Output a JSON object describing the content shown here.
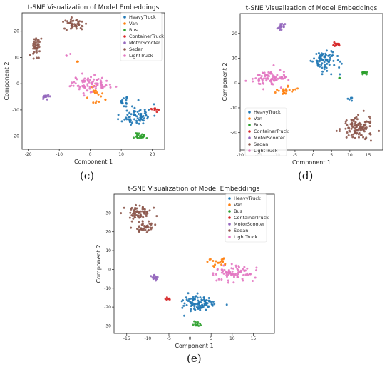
{
  "colors": {
    "HeavyTruck": "#1f77b4",
    "Van": "#ff7f0e",
    "Bus": "#2ca02c",
    "ContainerTruck": "#d62728",
    "MotorScooter": "#9467bd",
    "Sedan": "#8c564b",
    "LightTruck": "#e377c2"
  },
  "captions": {
    "c": "(c)",
    "d": "(d)",
    "e": "(e)"
  },
  "chart_data": [
    {
      "type": "scatter",
      "panel": "c",
      "title": "t-SNE Visualization of Model Embeddings",
      "xlabel": "Component 1",
      "ylabel": "Component 2",
      "xlim": [
        -22,
        24
      ],
      "ylim": [
        -25,
        27
      ],
      "xticks": [
        -20,
        -10,
        0,
        10,
        20
      ],
      "yticks": [
        -20,
        -10,
        0,
        10,
        20
      ],
      "grid": false,
      "legend_position": "top-right",
      "series": [
        {
          "name": "HeavyTruck",
          "clusters": [
            {
              "cx": 15,
              "cy": -12,
              "sx": 4,
              "sy": 3.5,
              "n": 70
            },
            {
              "cx": 11,
              "cy": -7,
              "sx": 2,
              "sy": 1.5,
              "n": 12
            }
          ]
        },
        {
          "name": "Van",
          "clusters": [
            {
              "cx": 2,
              "cy": -4,
              "sx": 2.2,
              "sy": 3.5,
              "n": 18
            },
            {
              "cx": -4,
              "cy": 8.5,
              "sx": 0.4,
              "sy": 0.4,
              "n": 3
            }
          ]
        },
        {
          "name": "Bus",
          "clusters": [
            {
              "cx": 16,
              "cy": -20,
              "sx": 1.5,
              "sy": 1.2,
              "n": 22
            }
          ]
        },
        {
          "name": "ContainerTruck",
          "clusters": [
            {
              "cx": 21,
              "cy": -10,
              "sx": 0.8,
              "sy": 0.8,
              "n": 10
            }
          ]
        },
        {
          "name": "MotorScooter",
          "clusters": [
            {
              "cx": -14.5,
              "cy": -5,
              "sx": 1.2,
              "sy": 0.8,
              "n": 14
            }
          ]
        },
        {
          "name": "Sedan",
          "clusters": [
            {
              "cx": -5,
              "cy": 23,
              "sx": 3.5,
              "sy": 2,
              "n": 45
            },
            {
              "cx": -17.5,
              "cy": 14,
              "sx": 1.2,
              "sy": 3,
              "n": 40
            }
          ]
        },
        {
          "name": "LightTruck",
          "clusters": [
            {
              "cx": 0,
              "cy": 0,
              "sx": 5,
              "sy": 2.5,
              "n": 85
            },
            {
              "cx": -7,
              "cy": 11,
              "sx": 0.8,
              "sy": 0.6,
              "n": 4
            }
          ]
        }
      ]
    },
    {
      "type": "scatter",
      "panel": "d",
      "title": "t-SNE Visualization of Model Embeddings",
      "xlabel": "Component 1",
      "ylabel": "Component 2",
      "xlim": [
        -20,
        19
      ],
      "ylim": [
        -27,
        28
      ],
      "xticks": [
        -20,
        -15,
        -10,
        -5,
        0,
        5,
        10,
        15
      ],
      "yticks": [
        -20,
        -10,
        0,
        10,
        20
      ],
      "grid": false,
      "legend_position": "lower-left",
      "series": [
        {
          "name": "HeavyTruck",
          "clusters": [
            {
              "cx": 3,
              "cy": 9,
              "sx": 3,
              "sy": 3.5,
              "n": 75
            },
            {
              "cx": 10,
              "cy": -6,
              "sx": 0.6,
              "sy": 1.2,
              "n": 5
            }
          ]
        },
        {
          "name": "Van",
          "clusters": [
            {
              "cx": -8,
              "cy": -3,
              "sx": 2.5,
              "sy": 1.2,
              "n": 22
            }
          ]
        },
        {
          "name": "Bus",
          "clusters": [
            {
              "cx": 14,
              "cy": 4,
              "sx": 0.8,
              "sy": 0.6,
              "n": 14
            },
            {
              "cx": 7,
              "cy": 2,
              "sx": 0.3,
              "sy": 0.3,
              "n": 2
            }
          ]
        },
        {
          "name": "ContainerTruck",
          "clusters": [
            {
              "cx": 6,
              "cy": 15.5,
              "sx": 1,
              "sy": 1,
              "n": 14
            }
          ]
        },
        {
          "name": "MotorScooter",
          "clusters": [
            {
              "cx": -9,
              "cy": 23,
              "sx": 0.8,
              "sy": 1.5,
              "n": 16
            }
          ]
        },
        {
          "name": "Sedan",
          "clusters": [
            {
              "cx": 12,
              "cy": -18,
              "sx": 3.5,
              "sy": 3.5,
              "n": 110
            }
          ]
        },
        {
          "name": "LightTruck",
          "clusters": [
            {
              "cx": -12,
              "cy": 2,
              "sx": 4,
              "sy": 2.5,
              "n": 85
            }
          ]
        }
      ]
    },
    {
      "type": "scatter",
      "panel": "e",
      "title": "t-SNE Visualization of Model Embeddings",
      "xlabel": "Component 1",
      "ylabel": "Component 2",
      "xlim": [
        -18,
        20
      ],
      "ylim": [
        -34,
        40
      ],
      "xticks": [
        -15,
        -10,
        -5,
        0,
        5,
        10,
        15
      ],
      "yticks": [
        -30,
        -20,
        -10,
        0,
        10,
        20,
        30
      ],
      "grid": false,
      "legend_position": "top-right",
      "series": [
        {
          "name": "HeavyTruck",
          "clusters": [
            {
              "cx": 2,
              "cy": -18,
              "sx": 3.5,
              "sy": 3.5,
              "n": 95
            }
          ]
        },
        {
          "name": "Van",
          "clusters": [
            {
              "cx": 7,
              "cy": 4,
              "sx": 2.5,
              "sy": 2,
              "n": 20
            }
          ]
        },
        {
          "name": "Bus",
          "clusters": [
            {
              "cx": 1.5,
              "cy": -29,
              "sx": 1,
              "sy": 0.8,
              "n": 12
            }
          ]
        },
        {
          "name": "ContainerTruck",
          "clusters": [
            {
              "cx": -5.5,
              "cy": -16,
              "sx": 0.8,
              "sy": 0.6,
              "n": 6
            }
          ]
        },
        {
          "name": "MotorScooter",
          "clusters": [
            {
              "cx": -8,
              "cy": -4,
              "sx": 1.2,
              "sy": 1.8,
              "n": 16
            }
          ]
        },
        {
          "name": "Sedan",
          "clusters": [
            {
              "cx": -12,
              "cy": 30,
              "sx": 2.2,
              "sy": 3,
              "n": 60
            },
            {
              "cx": -11,
              "cy": 22,
              "sx": 1.8,
              "sy": 2.5,
              "n": 40
            }
          ]
        },
        {
          "name": "LightTruck",
          "clusters": [
            {
              "cx": 10,
              "cy": -2,
              "sx": 4,
              "sy": 3,
              "n": 80
            }
          ]
        }
      ]
    }
  ]
}
